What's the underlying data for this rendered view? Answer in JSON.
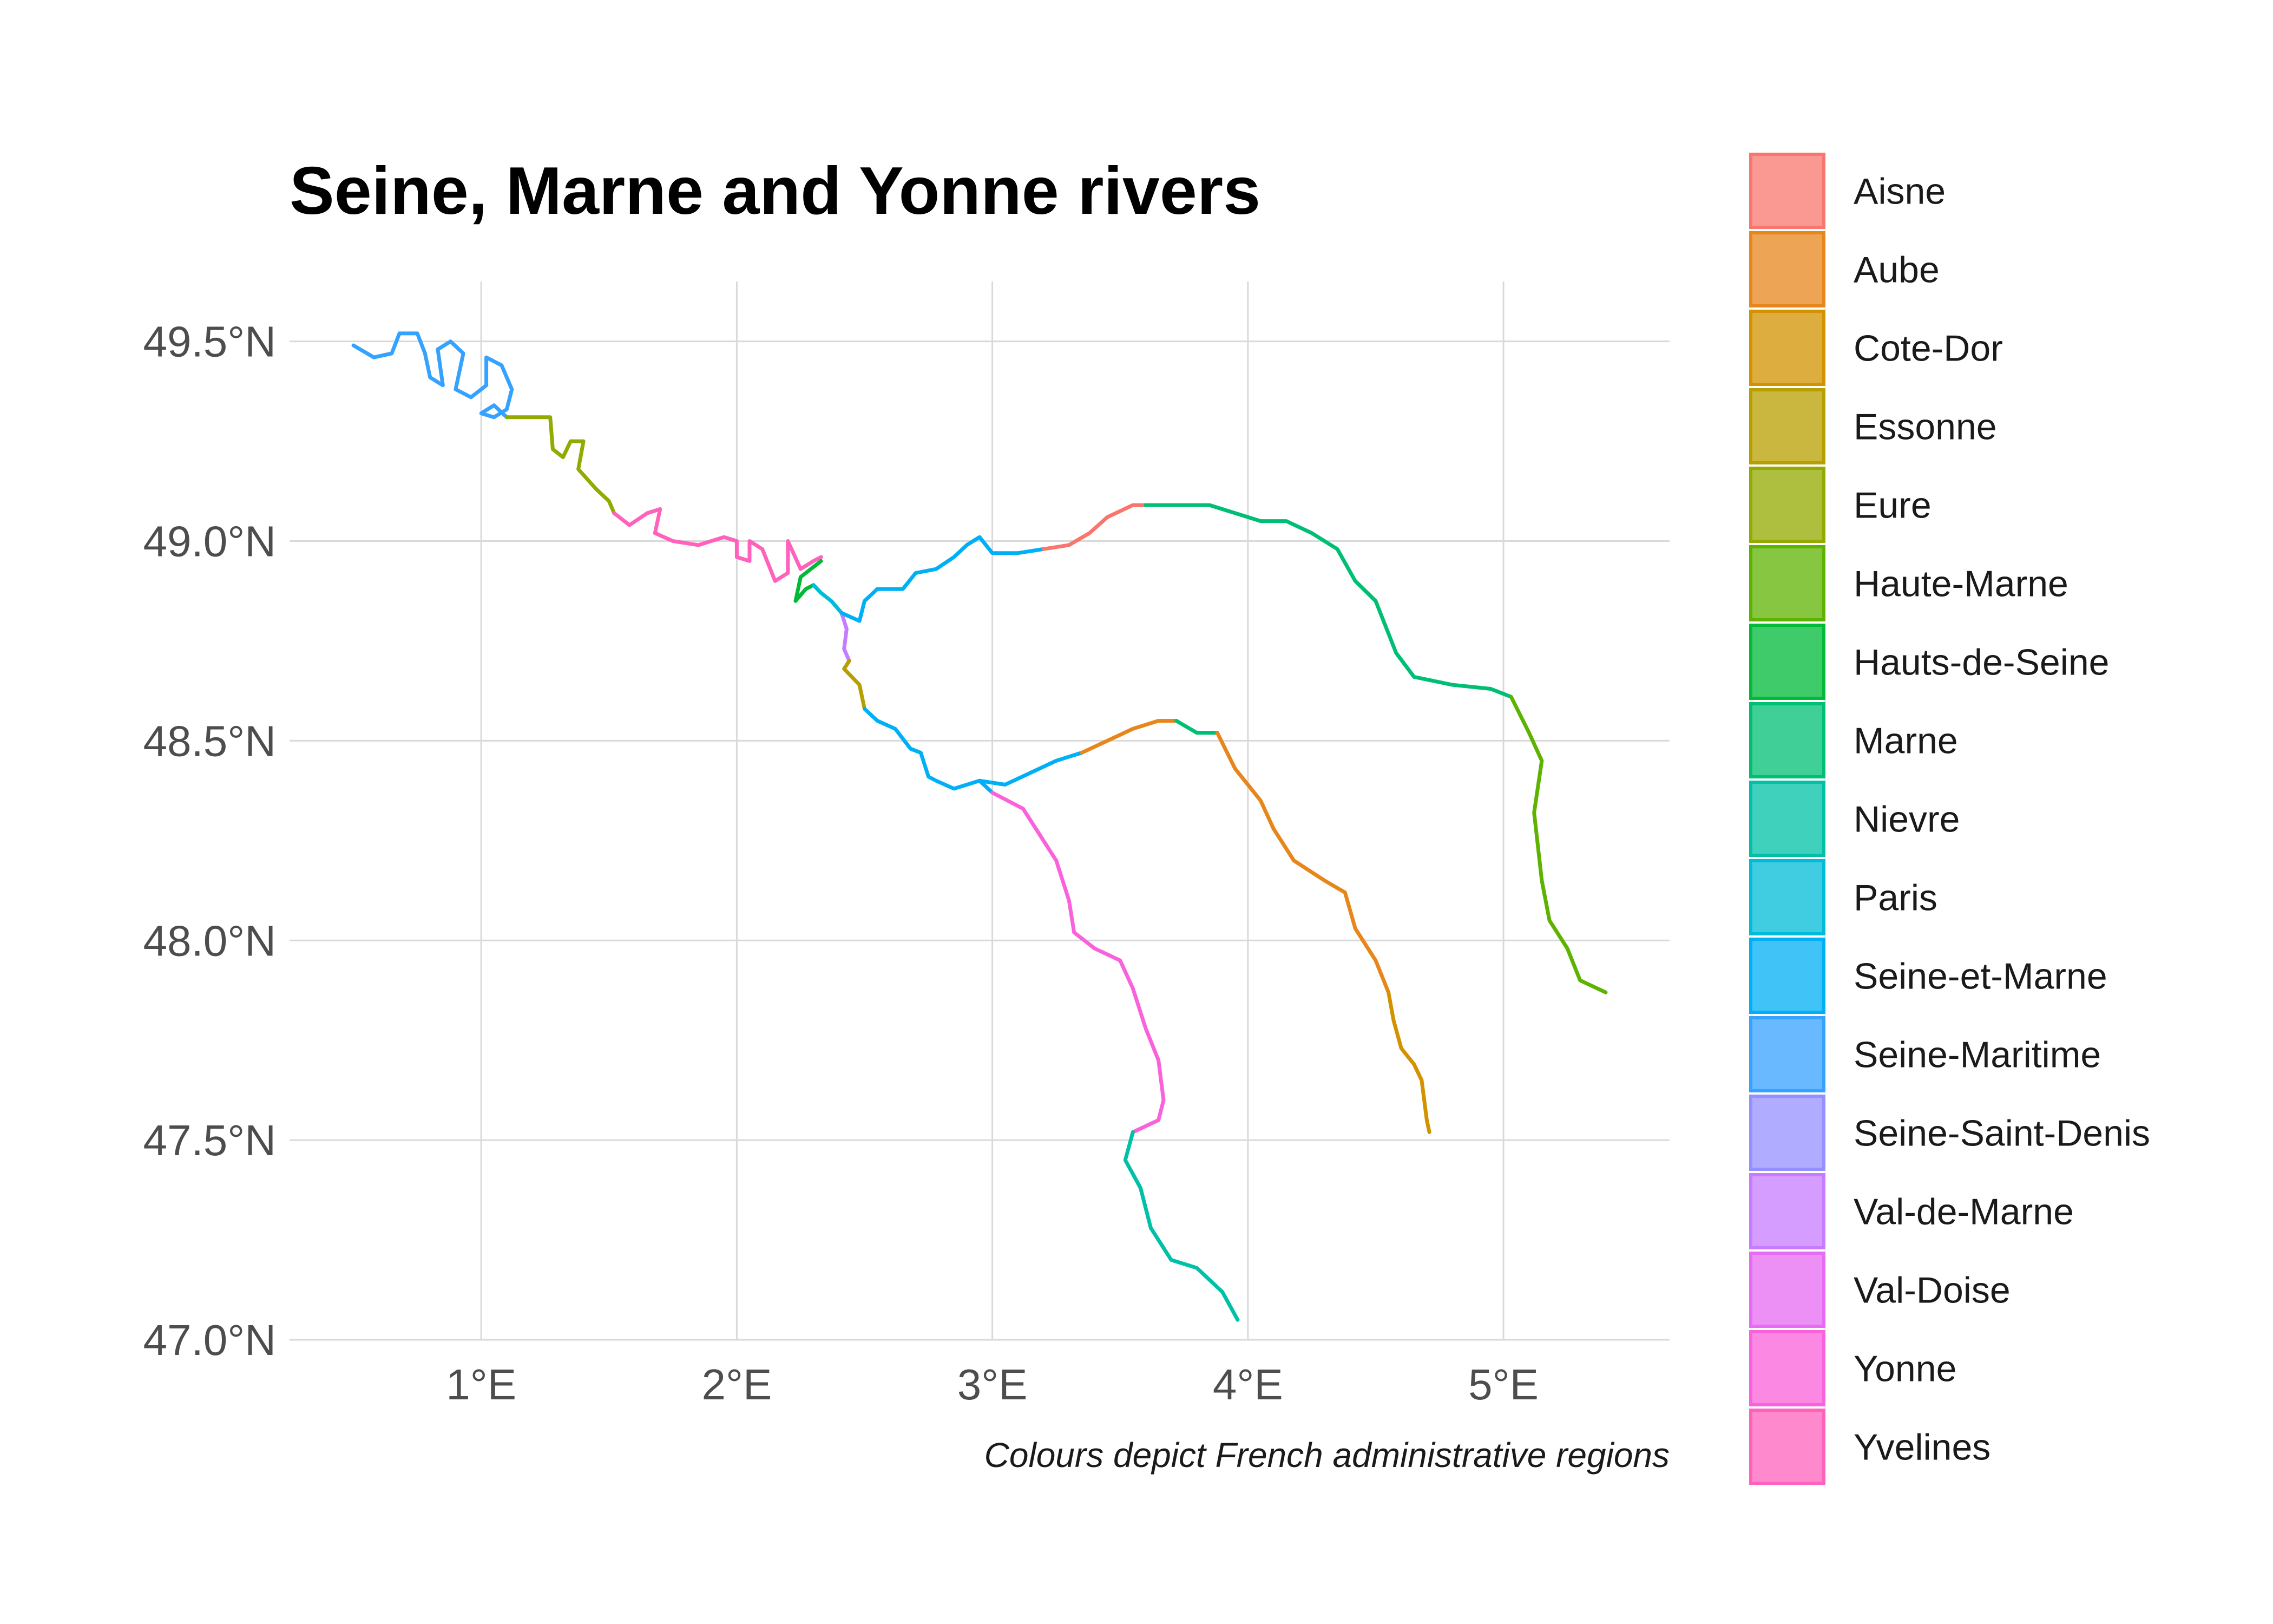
{
  "title": "Seine, Marne and Yonne rivers",
  "caption": "Colours depict French administrative regions",
  "axes": {
    "x_ticks": [
      "1°E",
      "2°E",
      "3°E",
      "4°E",
      "5°E"
    ],
    "x_values": [
      1,
      2,
      3,
      4,
      5
    ],
    "y_ticks": [
      "47.0°N",
      "47.5°N",
      "48.0°N",
      "48.5°N",
      "49.0°N",
      "49.5°N"
    ],
    "y_values": [
      47.0,
      47.5,
      48.0,
      48.5,
      49.0,
      49.5
    ],
    "xlim": [
      0.25,
      5.65
    ],
    "ylim": [
      47.0,
      49.65
    ]
  },
  "legend": [
    {
      "label": "Aisne",
      "color": "#F8766D"
    },
    {
      "label": "Aube",
      "color": "#E7861B"
    },
    {
      "label": "Cote-Dor",
      "color": "#D39200"
    },
    {
      "label": "Essonne",
      "color": "#B79F00"
    },
    {
      "label": "Eure",
      "color": "#93AA00"
    },
    {
      "label": "Haute-Marne",
      "color": "#5EB300"
    },
    {
      "label": "Hauts-de-Seine",
      "color": "#00BA38"
    },
    {
      "label": "Marne",
      "color": "#00BF74"
    },
    {
      "label": "Nievre",
      "color": "#00C1A7"
    },
    {
      "label": "Paris",
      "color": "#00BCD8"
    },
    {
      "label": "Seine-et-Marne",
      "color": "#00B0F6"
    },
    {
      "label": "Seine-Maritime",
      "color": "#35A2FF"
    },
    {
      "label": "Seine-Saint-Denis",
      "color": "#9590FF"
    },
    {
      "label": "Val-de-Marne",
      "color": "#C77CFF"
    },
    {
      "label": "Val-Doise",
      "color": "#E76BF3"
    },
    {
      "label": "Yonne",
      "color": "#FA62DB"
    },
    {
      "label": "Yvelines",
      "color": "#FF62BC"
    }
  ],
  "map_data": {
    "type": "river-map",
    "segments": [
      {
        "region": "Seine-Maritime",
        "river": "Seine",
        "coords": [
          [
            0.5,
            49.49
          ],
          [
            0.58,
            49.46
          ],
          [
            0.65,
            49.47
          ],
          [
            0.68,
            49.52
          ],
          [
            0.75,
            49.52
          ],
          [
            0.78,
            49.47
          ],
          [
            0.8,
            49.41
          ],
          [
            0.85,
            49.39
          ],
          [
            0.83,
            49.48
          ],
          [
            0.88,
            49.5
          ],
          [
            0.93,
            49.47
          ],
          [
            0.9,
            49.38
          ],
          [
            0.96,
            49.36
          ],
          [
            1.02,
            49.39
          ],
          [
            1.02,
            49.46
          ],
          [
            1.08,
            49.44
          ],
          [
            1.12,
            49.38
          ],
          [
            1.1,
            49.33
          ],
          [
            1.05,
            49.31
          ],
          [
            1.0,
            49.32
          ],
          [
            1.05,
            49.34
          ],
          [
            1.1,
            49.31
          ]
        ]
      },
      {
        "region": "Eure",
        "river": "Seine",
        "coords": [
          [
            1.1,
            49.31
          ],
          [
            1.27,
            49.31
          ],
          [
            1.28,
            49.23
          ],
          [
            1.32,
            49.21
          ],
          [
            1.35,
            49.25
          ],
          [
            1.4,
            49.25
          ],
          [
            1.38,
            49.18
          ],
          [
            1.45,
            49.13
          ],
          [
            1.5,
            49.1
          ],
          [
            1.52,
            49.07
          ]
        ]
      },
      {
        "region": "Yvelines",
        "river": "Seine",
        "coords": [
          [
            1.52,
            49.07
          ],
          [
            1.58,
            49.04
          ],
          [
            1.65,
            49.07
          ],
          [
            1.7,
            49.08
          ],
          [
            1.68,
            49.02
          ],
          [
            1.75,
            49.0
          ],
          [
            1.85,
            48.99
          ],
          [
            1.95,
            49.01
          ],
          [
            2.0,
            49.0
          ],
          [
            2.0,
            48.96
          ],
          [
            2.05,
            48.95
          ],
          [
            2.05,
            49.0
          ],
          [
            2.1,
            48.98
          ],
          [
            2.15,
            48.9
          ],
          [
            2.2,
            48.92
          ],
          [
            2.2,
            49.0
          ],
          [
            2.25,
            48.93
          ],
          [
            2.3,
            48.95
          ],
          [
            2.33,
            48.96
          ]
        ]
      },
      {
        "region": "Hauts-de-Seine",
        "river": "Seine",
        "coords": [
          [
            2.33,
            48.95
          ],
          [
            2.25,
            48.91
          ],
          [
            2.23,
            48.85
          ],
          [
            2.27,
            48.88
          ],
          [
            2.3,
            48.89
          ]
        ]
      },
      {
        "region": "Paris",
        "river": "Seine",
        "coords": [
          [
            2.3,
            48.89
          ],
          [
            2.33,
            48.87
          ],
          [
            2.37,
            48.85
          ],
          [
            2.41,
            48.82
          ]
        ]
      },
      {
        "region": "Val-de-Marne",
        "river": "Seine",
        "coords": [
          [
            2.41,
            48.82
          ],
          [
            2.43,
            48.78
          ],
          [
            2.42,
            48.73
          ],
          [
            2.44,
            48.7
          ]
        ]
      },
      {
        "region": "Essonne",
        "river": "Seine",
        "coords": [
          [
            2.44,
            48.7
          ],
          [
            2.42,
            48.68
          ],
          [
            2.48,
            48.64
          ],
          [
            2.5,
            48.58
          ]
        ]
      },
      {
        "region": "Seine-et-Marne",
        "river": "Seine",
        "coords": [
          [
            2.5,
            48.58
          ],
          [
            2.55,
            48.55
          ],
          [
            2.62,
            48.53
          ],
          [
            2.68,
            48.48
          ],
          [
            2.72,
            48.47
          ],
          [
            2.75,
            48.41
          ],
          [
            2.78,
            48.4
          ],
          [
            2.85,
            48.38
          ],
          [
            2.95,
            48.4
          ],
          [
            3.05,
            48.39
          ],
          [
            3.15,
            48.42
          ],
          [
            3.25,
            48.45
          ],
          [
            3.35,
            48.47
          ]
        ]
      },
      {
        "region": "Aube",
        "river": "Seine",
        "coords": [
          [
            3.35,
            48.47
          ],
          [
            3.45,
            48.5
          ],
          [
            3.55,
            48.53
          ],
          [
            3.65,
            48.55
          ],
          [
            3.72,
            48.55
          ]
        ]
      },
      {
        "region": "Marne",
        "river": "Seine",
        "coords": [
          [
            3.72,
            48.55
          ],
          [
            3.8,
            48.52
          ],
          [
            3.88,
            48.52
          ]
        ]
      },
      {
        "region": "Aube",
        "river": "Seine",
        "coords": [
          [
            3.88,
            48.52
          ],
          [
            3.95,
            48.43
          ],
          [
            4.05,
            48.35
          ],
          [
            4.1,
            48.28
          ],
          [
            4.18,
            48.2
          ],
          [
            4.3,
            48.15
          ],
          [
            4.38,
            48.12
          ],
          [
            4.42,
            48.03
          ],
          [
            4.5,
            47.95
          ],
          [
            4.55,
            47.87
          ]
        ]
      },
      {
        "region": "Cote-Dor",
        "river": "Seine",
        "coords": [
          [
            4.55,
            47.87
          ],
          [
            4.57,
            47.8
          ],
          [
            4.6,
            47.73
          ],
          [
            4.65,
            47.69
          ],
          [
            4.68,
            47.65
          ],
          [
            4.7,
            47.55
          ],
          [
            4.71,
            47.52
          ]
        ]
      },
      {
        "region": "Seine-et-Marne",
        "river": "Marne",
        "coords": [
          [
            2.41,
            48.82
          ],
          [
            2.48,
            48.8
          ],
          [
            2.5,
            48.85
          ],
          [
            2.55,
            48.88
          ],
          [
            2.65,
            48.88
          ],
          [
            2.7,
            48.92
          ],
          [
            2.78,
            48.93
          ],
          [
            2.85,
            48.96
          ],
          [
            2.9,
            48.99
          ],
          [
            2.95,
            49.01
          ],
          [
            3.0,
            48.97
          ],
          [
            3.1,
            48.97
          ],
          [
            3.2,
            48.98
          ]
        ]
      },
      {
        "region": "Aisne",
        "river": "Marne",
        "coords": [
          [
            3.2,
            48.98
          ],
          [
            3.3,
            48.99
          ],
          [
            3.38,
            49.02
          ],
          [
            3.45,
            49.06
          ],
          [
            3.55,
            49.09
          ],
          [
            3.6,
            49.09
          ]
        ]
      },
      {
        "region": "Marne",
        "river": "Marne",
        "coords": [
          [
            3.6,
            49.09
          ],
          [
            3.75,
            49.09
          ],
          [
            3.85,
            49.09
          ],
          [
            3.95,
            49.07
          ],
          [
            4.05,
            49.05
          ],
          [
            4.15,
            49.05
          ],
          [
            4.25,
            49.02
          ],
          [
            4.35,
            48.98
          ],
          [
            4.42,
            48.9
          ],
          [
            4.5,
            48.85
          ],
          [
            4.58,
            48.72
          ],
          [
            4.65,
            48.66
          ],
          [
            4.8,
            48.64
          ],
          [
            4.95,
            48.63
          ],
          [
            5.03,
            48.61
          ]
        ]
      },
      {
        "region": "Haute-Marne",
        "river": "Marne",
        "coords": [
          [
            5.03,
            48.61
          ],
          [
            5.1,
            48.52
          ],
          [
            5.15,
            48.45
          ],
          [
            5.12,
            48.32
          ],
          [
            5.15,
            48.15
          ],
          [
            5.18,
            48.05
          ],
          [
            5.25,
            47.98
          ],
          [
            5.3,
            47.9
          ],
          [
            5.4,
            47.87
          ]
        ]
      },
      {
        "region": "Seine-et-Marne",
        "river": "Yonne",
        "coords": [
          [
            2.95,
            48.4
          ],
          [
            3.0,
            48.37
          ]
        ]
      },
      {
        "region": "Yonne",
        "river": "Yonne",
        "coords": [
          [
            3.0,
            48.37
          ],
          [
            3.12,
            48.33
          ],
          [
            3.2,
            48.25
          ],
          [
            3.25,
            48.2
          ],
          [
            3.3,
            48.1
          ],
          [
            3.32,
            48.02
          ],
          [
            3.4,
            47.98
          ],
          [
            3.5,
            47.95
          ],
          [
            3.55,
            47.88
          ],
          [
            3.6,
            47.78
          ],
          [
            3.65,
            47.7
          ],
          [
            3.67,
            47.6
          ],
          [
            3.65,
            47.55
          ],
          [
            3.55,
            47.52
          ]
        ]
      },
      {
        "region": "Nievre",
        "river": "Yonne",
        "coords": [
          [
            3.55,
            47.52
          ],
          [
            3.52,
            47.45
          ],
          [
            3.58,
            47.38
          ],
          [
            3.62,
            47.28
          ],
          [
            3.7,
            47.2
          ],
          [
            3.8,
            47.18
          ],
          [
            3.9,
            47.12
          ],
          [
            3.96,
            47.05
          ]
        ]
      }
    ]
  }
}
